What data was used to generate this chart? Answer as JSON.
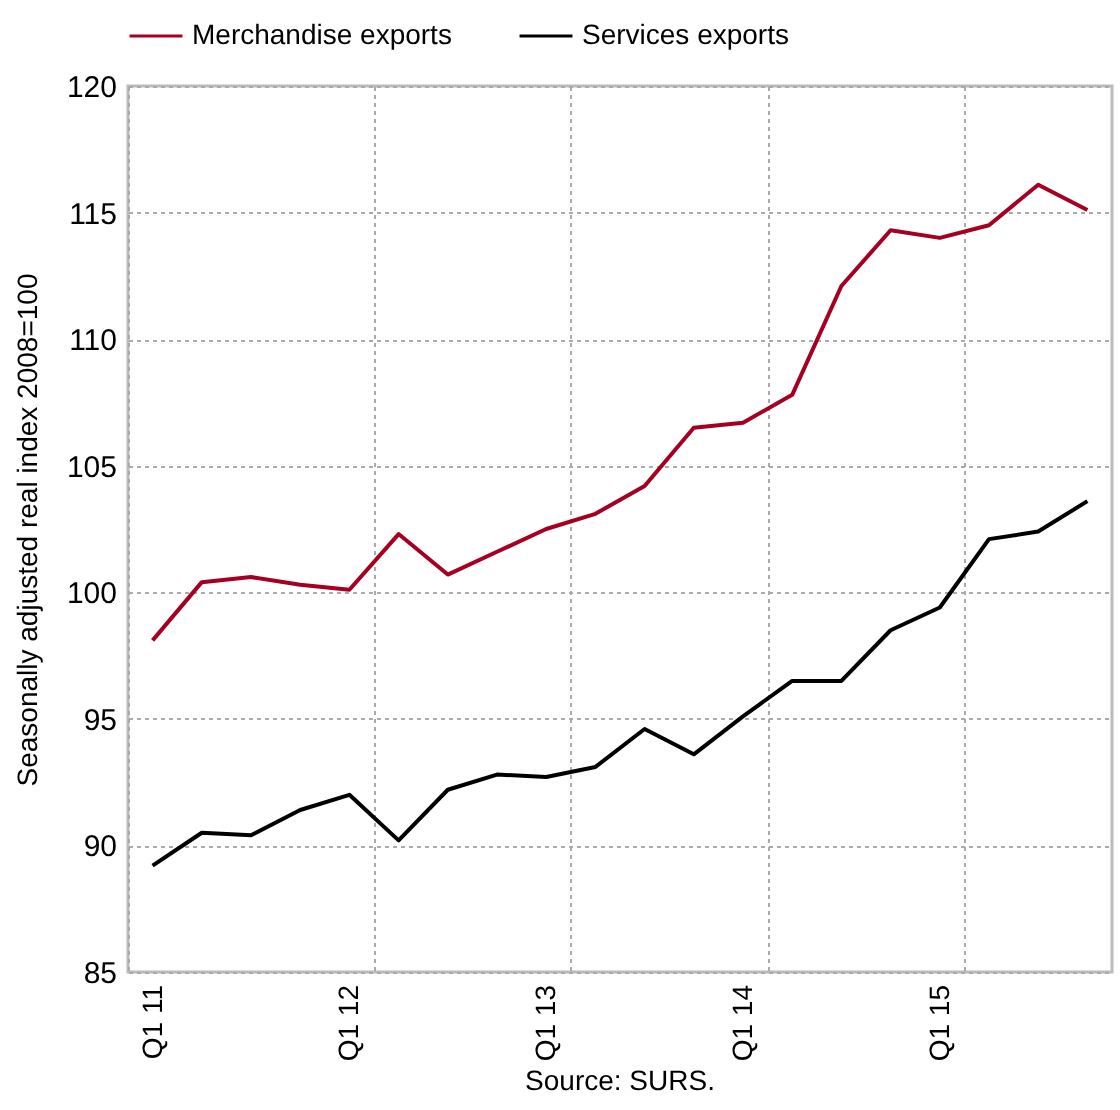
{
  "chart_data": {
    "type": "line",
    "ylabel": "Seasonally adjusted real index 2008=100",
    "annotations": [
      "Source: SURS."
    ],
    "categories": [
      "Q1 11",
      null,
      null,
      null,
      "Q1 12",
      null,
      null,
      null,
      "Q1 13",
      null,
      null,
      null,
      "Q1 14",
      null,
      null,
      null,
      "Q1 15",
      null,
      null,
      null
    ],
    "series": [
      {
        "name": "Merchandise exports",
        "color": "#a50021",
        "values": [
          98.1,
          100.4,
          100.6,
          100.3,
          100.1,
          102.3,
          100.7,
          101.6,
          102.5,
          103.1,
          104.2,
          106.5,
          106.7,
          107.8,
          112.1,
          114.3,
          114.0,
          114.5,
          116.1,
          115.1
        ]
      },
      {
        "name": "Services exports",
        "color": "#000000",
        "values": [
          89.2,
          90.5,
          90.4,
          91.4,
          92.0,
          90.2,
          92.2,
          92.8,
          92.7,
          93.1,
          94.6,
          93.6,
          95.1,
          96.5,
          96.5,
          98.5,
          99.4,
          102.1,
          102.4,
          103.6
        ]
      }
    ],
    "ylim": [
      85,
      120
    ],
    "yticks": [
      85,
      90,
      95,
      100,
      105,
      110,
      115,
      120
    ],
    "grid": true,
    "legend": "top left",
    "marker": "none",
    "line_style": "solid"
  }
}
